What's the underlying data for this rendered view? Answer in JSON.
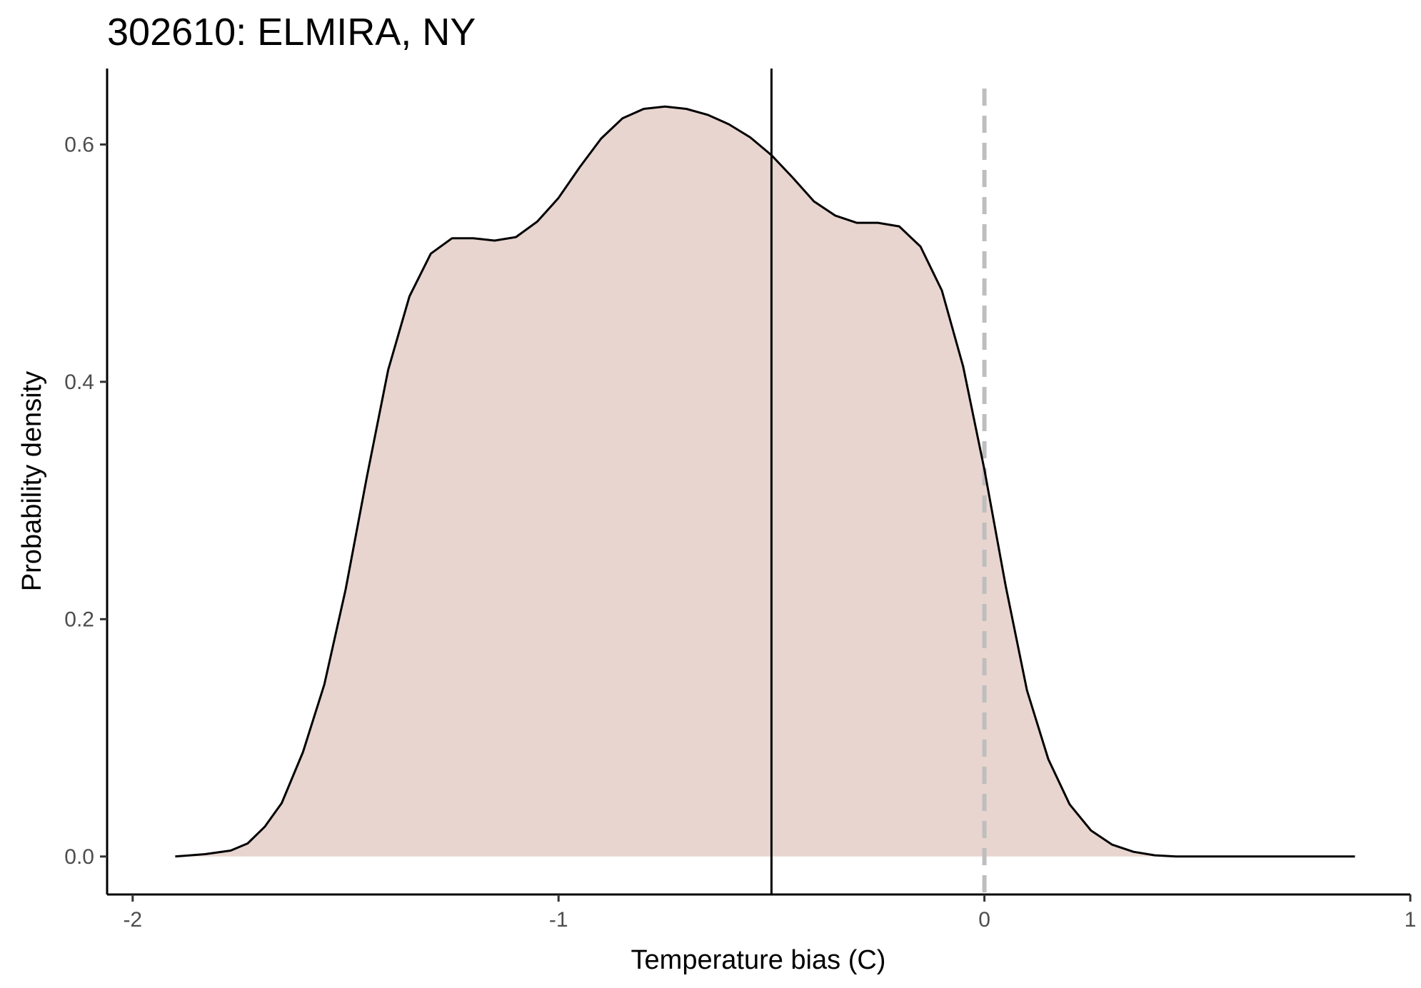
{
  "chart_data": {
    "type": "area",
    "title": "302610: ELMIRA, NY",
    "xlabel": "Temperature bias (C)",
    "ylabel": "Probability density",
    "xlim": [
      -2.06,
      1.0
    ],
    "ylim": [
      -0.032,
      0.664
    ],
    "x_ticks": [
      -2,
      -1,
      0,
      1
    ],
    "x_tick_labels": [
      "-2",
      "-1",
      "0",
      "1"
    ],
    "y_ticks": [
      0.0,
      0.2,
      0.4,
      0.6
    ],
    "y_tick_labels": [
      "0.0",
      "0.2",
      "0.4",
      "0.6"
    ],
    "grid": false,
    "fill_color": "#e8d5cf",
    "line_color": "#000000",
    "series": [
      {
        "x": [
          -1.9,
          -1.83,
          -1.77,
          -1.73,
          -1.69,
          -1.65,
          -1.6,
          -1.55,
          -1.5,
          -1.45,
          -1.4,
          -1.35,
          -1.3,
          -1.25,
          -1.2,
          -1.15,
          -1.1,
          -1.05,
          -1.0,
          -0.95,
          -0.9,
          -0.85,
          -0.8,
          -0.75,
          -0.7,
          -0.65,
          -0.6,
          -0.55,
          -0.5,
          -0.45,
          -0.4,
          -0.35,
          -0.3,
          -0.25,
          -0.2,
          -0.15,
          -0.1,
          -0.05,
          0.0,
          0.05,
          0.1,
          0.15,
          0.2,
          0.25,
          0.3,
          0.35,
          0.4,
          0.45,
          0.5,
          0.55,
          0.6,
          0.65,
          0.7,
          0.75,
          0.81,
          0.87
        ],
        "y": [
          0.0,
          0.002,
          0.005,
          0.011,
          0.025,
          0.045,
          0.088,
          0.145,
          0.225,
          0.32,
          0.41,
          0.472,
          0.508,
          0.521,
          0.521,
          0.519,
          0.522,
          0.535,
          0.555,
          0.581,
          0.605,
          0.622,
          0.63,
          0.632,
          0.63,
          0.625,
          0.617,
          0.606,
          0.591,
          0.572,
          0.552,
          0.54,
          0.534,
          0.534,
          0.531,
          0.514,
          0.477,
          0.413,
          0.326,
          0.228,
          0.14,
          0.082,
          0.044,
          0.022,
          0.01,
          0.004,
          0.001,
          0.0,
          0.0,
          0.0,
          0.0,
          0.0,
          0.0,
          0.0,
          0.0,
          0.0
        ]
      }
    ],
    "vlines": [
      {
        "x": -0.5,
        "style": "solid",
        "color": "#000000"
      },
      {
        "x": 0.0,
        "style": "dashed",
        "color": "#bebebe"
      }
    ]
  }
}
